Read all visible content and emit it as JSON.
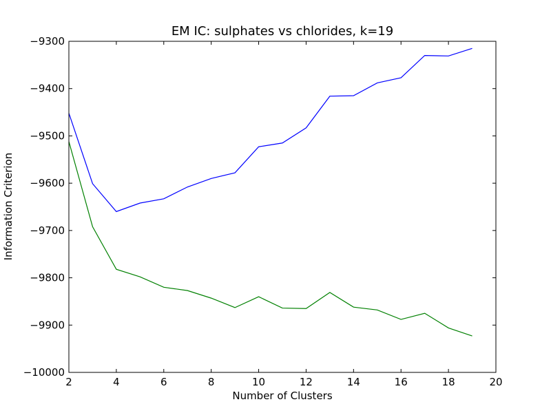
{
  "chart_data": {
    "type": "line",
    "title": "EM IC: sulphates vs chlorides, k=19",
    "xlabel": "Number of Clusters",
    "ylabel": "Information Criterion",
    "xlim": [
      2,
      20
    ],
    "ylim": [
      -10000,
      -9300
    ],
    "x_ticks": [
      2,
      4,
      6,
      8,
      10,
      12,
      14,
      16,
      18,
      20
    ],
    "y_ticks": [
      -10000,
      -9900,
      -9800,
      -9700,
      -9600,
      -9500,
      -9400,
      -9300
    ],
    "x_tick_labels": [
      "2",
      "4",
      "6",
      "8",
      "10",
      "12",
      "14",
      "16",
      "18",
      "20"
    ],
    "y_tick_labels": [
      "−10000",
      "−9900",
      "−9800",
      "−9700",
      "−9600",
      "−9500",
      "−9400",
      "−9300"
    ],
    "grid": false,
    "x": [
      2,
      3,
      4,
      5,
      6,
      7,
      8,
      9,
      10,
      11,
      12,
      13,
      14,
      15,
      16,
      17,
      18,
      19
    ],
    "series": [
      {
        "color": "#0000ff",
        "values": [
          -9452,
          -9601,
          -9660,
          -9642,
          -9633,
          -9608,
          -9590,
          -9578,
          -9523,
          -9515,
          -9483,
          -9416,
          -9415,
          -9388,
          -9377,
          -9330,
          -9331,
          -9315
        ]
      },
      {
        "color": "#008000",
        "values": [
          -9512,
          -9692,
          -9782,
          -9798,
          -9820,
          -9827,
          -9843,
          -9863,
          -9840,
          -9864,
          -9865,
          -9831,
          -9862,
          -9868,
          -9888,
          -9875,
          -9906,
          -9923
        ]
      }
    ]
  }
}
